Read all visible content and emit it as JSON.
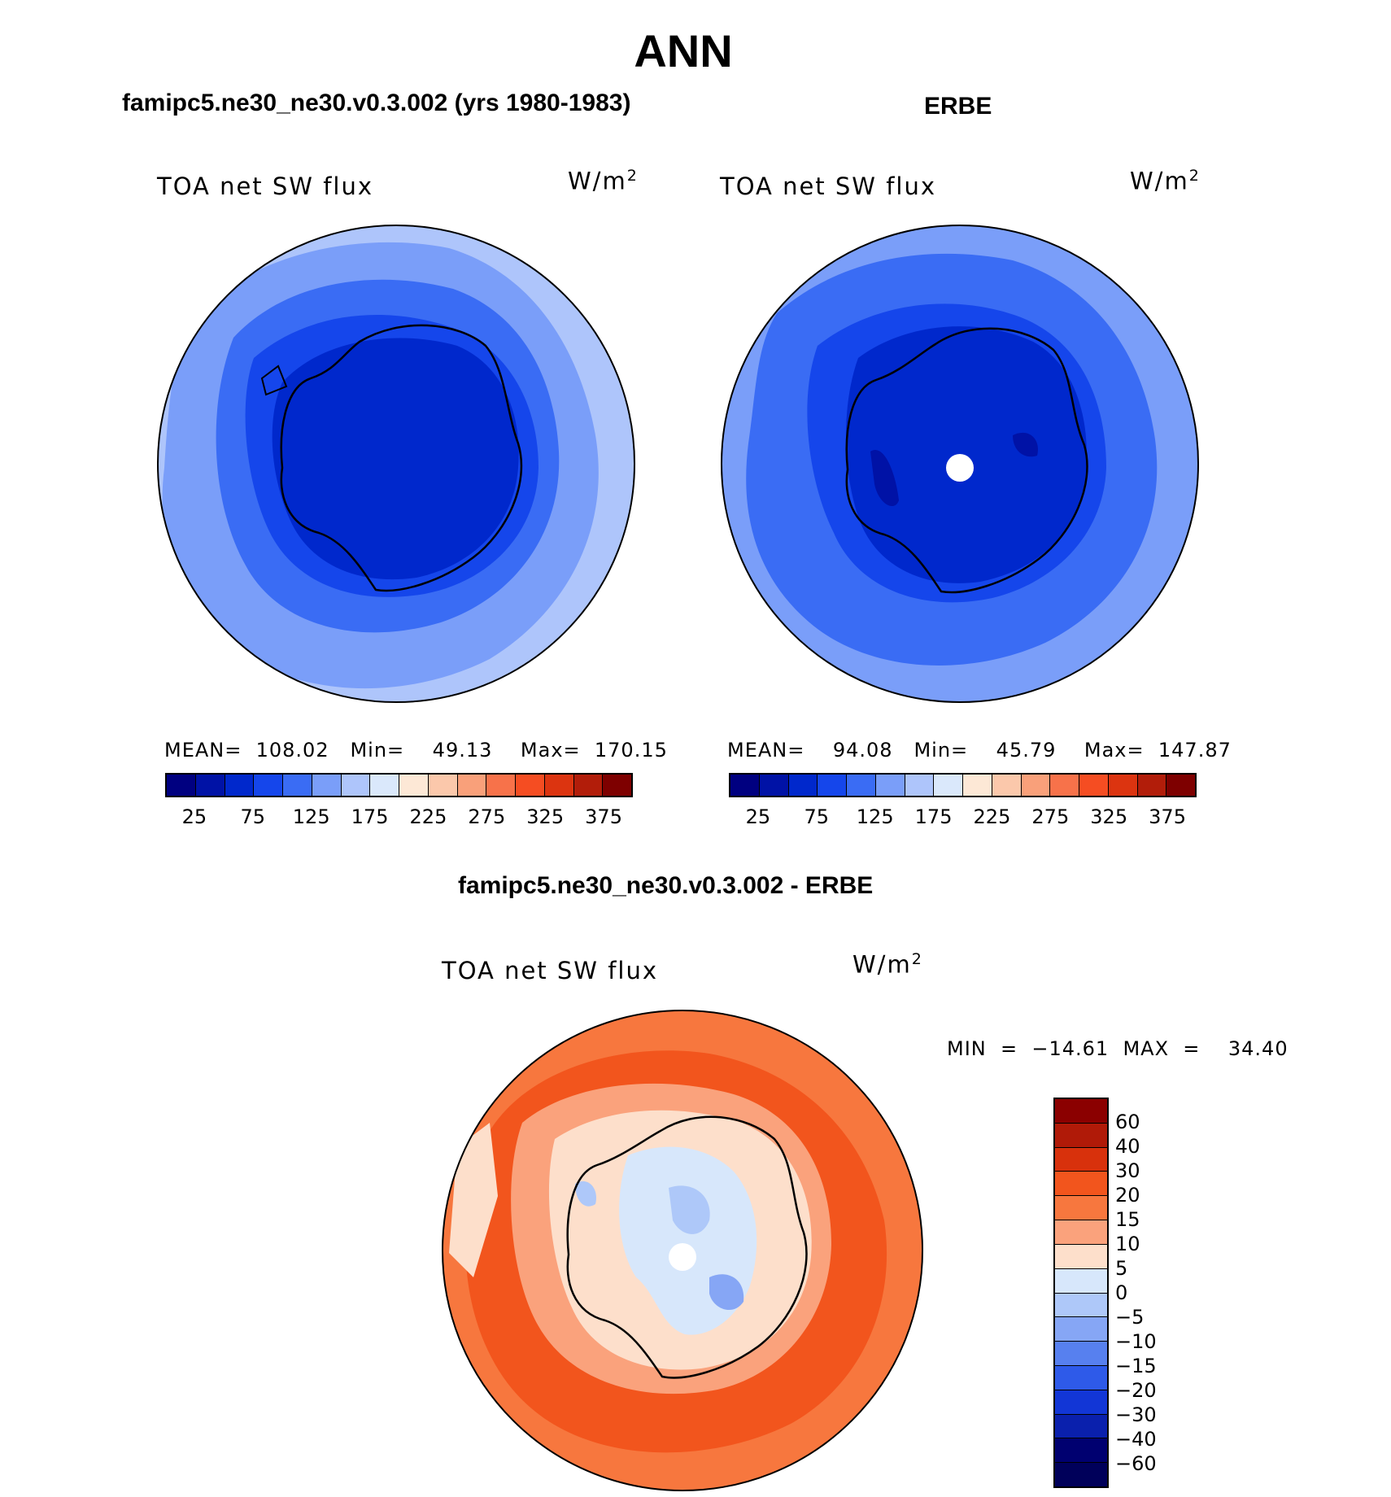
{
  "title": "ANN",
  "panels": {
    "model": {
      "title": "famipc5.ne30_ne30.v0.3.002 (yrs 1980-1983)",
      "variable": "TOA net SW flux",
      "units": "W/m",
      "units_sup": "2",
      "stats": "MEAN=  108.02   Min=    49.13    Max=  170.15",
      "mean": 108.02,
      "min": 49.13,
      "max": 170.15
    },
    "obs": {
      "title": "ERBE",
      "variable": "TOA net SW flux",
      "units": "W/m",
      "units_sup": "2",
      "stats": "MEAN=    94.08   Min=    45.79    Max=  147.87",
      "mean": 94.08,
      "min": 45.79,
      "max": 147.87
    },
    "diff": {
      "title": "famipc5.ne30_ne30.v0.3.002 - ERBE",
      "variable": "TOA net SW flux",
      "units": "W/m",
      "units_sup": "2",
      "stats": "MIN  =  −14.61  MAX  =    34.40",
      "min": -14.61,
      "max": 34.4
    }
  },
  "colorbars": {
    "main": {
      "colors": [
        "#000080",
        "#0012a6",
        "#0028cc",
        "#1546eb",
        "#3a6cf4",
        "#7a9ef9",
        "#aec5fb",
        "#dae8fb",
        "#fde8d6",
        "#fbc8ab",
        "#f9a07a",
        "#f7724a",
        "#f54d22",
        "#dc3410",
        "#b21d0a",
        "#7e0000"
      ],
      "labels": [
        "25",
        "75",
        "125",
        "175",
        "225",
        "275",
        "325",
        "375"
      ]
    },
    "diff": {
      "colors": [
        "#8b0000",
        "#b01a08",
        "#d8310c",
        "#f2551d",
        "#f7773e",
        "#faa27c",
        "#fddfcb",
        "#d7e7fb",
        "#aec8f9",
        "#86a6f5",
        "#5780ef",
        "#2e5ae9",
        "#1236d6",
        "#0a20ad",
        "#000070"
      ],
      "labels": [
        "60",
        "40",
        "30",
        "20",
        "15",
        "10",
        "5",
        "0",
        "−5",
        "−10",
        "−15",
        "−20",
        "−30",
        "−40",
        "−60"
      ]
    }
  }
}
